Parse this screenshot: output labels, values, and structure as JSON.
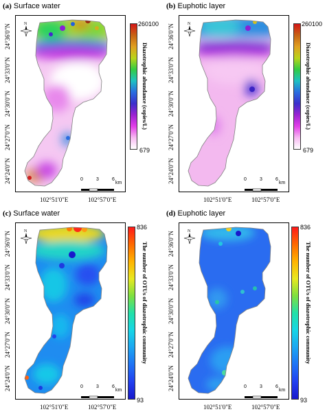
{
  "panels": [
    {
      "label": "(a)",
      "title": "Surface water",
      "colorbar": {
        "title": "Diazotrophic abundance (copies/L)",
        "max": "260100",
        "min": "679",
        "stops": [
          "#d51616",
          "#c76415",
          "#e0a020",
          "#b9d41b",
          "#33cc44",
          "#1ec2c2",
          "#2a6de0",
          "#3b2fcc",
          "#9a22d2",
          "#e23ee8",
          "#f7b9f2",
          "#ffffff"
        ]
      }
    },
    {
      "label": "(b)",
      "title": "Euphotic layer",
      "colorbar": {
        "title": "Diazotrophic abundance (copies/L)",
        "max": "260100",
        "min": "679",
        "stops": [
          "#d51616",
          "#c76415",
          "#e0a020",
          "#b9d41b",
          "#33cc44",
          "#1ec2c2",
          "#2a6de0",
          "#3b2fcc",
          "#9a22d2",
          "#e23ee8",
          "#f7b9f2",
          "#ffffff"
        ]
      }
    },
    {
      "label": "(c)",
      "title": "Surface water",
      "colorbar": {
        "title": "The number of OTUs of diazotrophic community",
        "max": "836",
        "min": "93",
        "stops": [
          "#ff1a1a",
          "#ff6a00",
          "#ffb300",
          "#e8e820",
          "#7ee040",
          "#22e0a8",
          "#16d6e6",
          "#1ca6f2",
          "#1f73f5",
          "#2140f0",
          "#1818cc"
        ]
      }
    },
    {
      "label": "(d)",
      "title": "Euphotic layer",
      "colorbar": {
        "title": "The number of OTUs of diazotrophic community",
        "max": "836",
        "min": "93",
        "stops": [
          "#ff1a1a",
          "#ff6a00",
          "#ffb300",
          "#e8e820",
          "#7ee040",
          "#22e0a8",
          "#16d6e6",
          "#1ca6f2",
          "#1f73f5",
          "#2140f0",
          "#1818cc"
        ]
      }
    }
  ],
  "latitude_ticks": [
    "24°36'0\"N",
    "24°33'0\"N",
    "24°30'0\"N",
    "24°27'0\"N",
    "24°24'0\"N"
  ],
  "longitude_ticks": [
    "102°51'0\"E",
    "102°57'0\"E"
  ],
  "scale_bar": {
    "labels": [
      "0",
      "3",
      "6"
    ],
    "unit": "km"
  },
  "north_arrow": {
    "label": "N"
  },
  "colors": {
    "lake_outline": "#808080",
    "frame": "#000000"
  }
}
